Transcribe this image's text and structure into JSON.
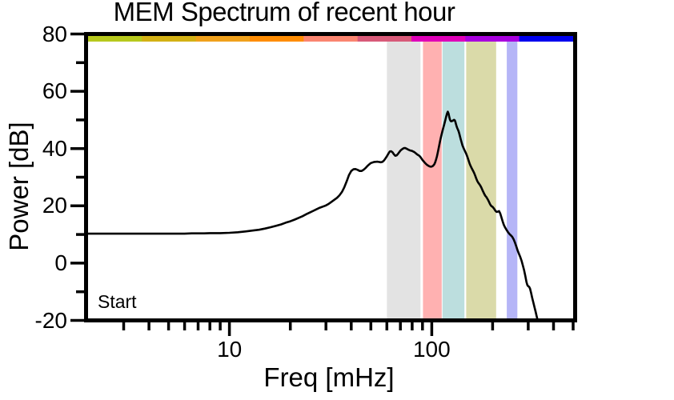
{
  "chart_data": {
    "type": "line",
    "title": "MEM Spectrum of recent hour",
    "annotation": {
      "text": "Start"
    },
    "grid": false,
    "legend": "none",
    "x_axis": {
      "label": "Freq [mHz]",
      "scale": "log",
      "min": 2,
      "max": 500,
      "major_ticks": [
        {
          "value": 10,
          "label": "10"
        },
        {
          "value": 100,
          "label": "100"
        }
      ],
      "minor_ticks": [
        3,
        4,
        5,
        6,
        7,
        8,
        9,
        20,
        30,
        40,
        50,
        60,
        70,
        80,
        90,
        200,
        300,
        400,
        500
      ]
    },
    "y_axis": {
      "label": "Power [dB]",
      "scale": "linear",
      "min": -20,
      "max": 80,
      "major_ticks": [
        {
          "value": 80,
          "label": "80"
        },
        {
          "value": 60,
          "label": "60"
        },
        {
          "value": 40,
          "label": "40"
        },
        {
          "value": 20,
          "label": "20"
        },
        {
          "value": 0,
          "label": "0"
        },
        {
          "value": -20,
          "label": "-20"
        }
      ],
      "minor_ticks": [
        70,
        50,
        30,
        10,
        -10
      ]
    },
    "top_colorbar": {
      "description": "nine equal log-width segments under top frame edge",
      "segments": [
        "#b7c91d",
        "#d3b115",
        "#f0a11c",
        "#ff8d04",
        "#fa8570",
        "#d85a79",
        "#df00b8",
        "#a800de",
        "#0000ee"
      ]
    },
    "shaded_bands": [
      {
        "name": "band-gray",
        "f_start": 60,
        "f_end": 88,
        "color": "#e3e3e3"
      },
      {
        "name": "band-pink",
        "f_start": 90.5,
        "f_end": 112,
        "color": "#ffb1b1"
      },
      {
        "name": "band-teal",
        "f_start": 113,
        "f_end": 145,
        "color": "#bcdede"
      },
      {
        "name": "band-khaki",
        "f_start": 148,
        "f_end": 208,
        "color": "#dadaa9"
      },
      {
        "name": "band-purple",
        "f_start": 235,
        "f_end": 265,
        "color": "#b5b5f7"
      }
    ],
    "series": [
      {
        "name": "mem-spectrum",
        "color": "#000000",
        "points": [
          [
            2,
            10
          ],
          [
            2.5,
            10
          ],
          [
            3,
            10
          ],
          [
            3.5,
            10
          ],
          [
            4,
            10
          ],
          [
            4.5,
            10
          ],
          [
            5,
            10
          ],
          [
            5.5,
            10
          ],
          [
            6,
            10
          ],
          [
            6.5,
            10.1
          ],
          [
            7,
            10.1
          ],
          [
            7.5,
            10.1
          ],
          [
            8,
            10.2
          ],
          [
            9,
            10.2
          ],
          [
            10,
            10.3
          ],
          [
            11,
            10.5
          ],
          [
            12,
            10.8
          ],
          [
            13,
            11.1
          ],
          [
            14,
            11.4
          ],
          [
            15,
            11.8
          ],
          [
            16,
            12.3
          ],
          [
            17,
            12.8
          ],
          [
            18,
            13.3
          ],
          [
            19,
            13.9
          ],
          [
            20,
            14.4
          ],
          [
            21,
            15
          ],
          [
            22,
            15.6
          ],
          [
            23,
            16.2
          ],
          [
            24,
            16.9
          ],
          [
            25,
            17.5
          ],
          [
            26,
            18.1
          ],
          [
            27,
            18.7
          ],
          [
            28,
            19.2
          ],
          [
            29,
            19.6
          ],
          [
            30,
            20
          ],
          [
            31,
            20.6
          ],
          [
            32,
            21.3
          ],
          [
            33,
            22
          ],
          [
            34,
            22.7
          ],
          [
            35,
            23.6
          ],
          [
            36,
            24.8
          ],
          [
            37,
            26.5
          ],
          [
            38,
            28.6
          ],
          [
            39,
            30.8
          ],
          [
            40,
            32.2
          ],
          [
            41,
            32.8
          ],
          [
            42,
            32.9
          ],
          [
            43,
            32.6
          ],
          [
            44,
            32.2
          ],
          [
            45,
            32.2
          ],
          [
            46,
            32.6
          ],
          [
            47,
            33.2
          ],
          [
            48,
            33.9
          ],
          [
            49,
            34.5
          ],
          [
            50,
            35
          ],
          [
            52,
            35.4
          ],
          [
            54,
            35.5
          ],
          [
            56,
            35.3
          ],
          [
            57,
            35.4
          ],
          [
            58,
            35.9
          ],
          [
            59,
            36.6
          ],
          [
            60,
            37.4
          ],
          [
            61,
            38.3
          ],
          [
            62,
            39.1
          ],
          [
            63,
            39.2
          ],
          [
            64,
            38.8
          ],
          [
            65,
            38.1
          ],
          [
            66,
            37.6
          ],
          [
            67,
            37.7
          ],
          [
            68,
            38.2
          ],
          [
            69,
            38.8
          ],
          [
            70,
            39.4
          ],
          [
            71,
            39.8
          ],
          [
            72,
            40.1
          ],
          [
            73,
            40.3
          ],
          [
            74,
            40.3
          ],
          [
            75,
            40.1
          ],
          [
            76,
            39.9
          ],
          [
            77,
            39.7
          ],
          [
            78,
            39.5
          ],
          [
            79,
            39.4
          ],
          [
            80,
            39.3
          ],
          [
            81,
            39.1
          ],
          [
            82,
            38.9
          ],
          [
            83,
            38.6
          ],
          [
            84,
            38.3
          ],
          [
            85,
            38
          ],
          [
            86,
            37.8
          ],
          [
            87,
            37.5
          ],
          [
            88,
            37.1
          ],
          [
            89,
            36.6
          ],
          [
            90,
            36.1
          ],
          [
            91,
            35.7
          ],
          [
            92,
            35.3
          ],
          [
            93,
            34.9
          ],
          [
            94,
            34.6
          ],
          [
            95,
            34.3
          ],
          [
            96,
            34.1
          ],
          [
            97,
            33.9
          ],
          [
            98,
            33.8
          ],
          [
            99,
            33.7
          ],
          [
            100,
            33.8
          ],
          [
            101,
            33.9
          ],
          [
            102,
            34.2
          ],
          [
            103,
            34.6
          ],
          [
            104,
            35.3
          ],
          [
            105,
            36.2
          ],
          [
            106,
            37.3
          ],
          [
            107,
            38.6
          ],
          [
            108,
            40
          ],
          [
            109,
            41.4
          ],
          [
            110,
            42.8
          ],
          [
            111,
            44.1
          ],
          [
            112,
            45.3
          ],
          [
            113,
            46.4
          ],
          [
            114,
            47.4
          ],
          [
            115,
            48.4
          ],
          [
            116,
            49.4
          ],
          [
            117,
            50.5
          ],
          [
            118,
            51.6
          ],
          [
            119,
            52.6
          ],
          [
            120,
            53.2
          ],
          [
            121,
            52.6
          ],
          [
            122,
            51.4
          ],
          [
            123,
            50.4
          ],
          [
            124,
            49.9
          ],
          [
            125,
            49.8
          ],
          [
            126,
            49.9
          ],
          [
            127,
            50
          ],
          [
            128,
            50.2
          ],
          [
            129,
            50.3
          ],
          [
            130,
            50.1
          ],
          [
            131,
            49.5
          ],
          [
            132,
            48.6
          ],
          [
            133,
            47.8
          ],
          [
            134,
            47.2
          ],
          [
            135,
            46.7
          ],
          [
            136,
            46.1
          ],
          [
            137,
            45.3
          ],
          [
            138,
            44.4
          ],
          [
            139,
            43.5
          ],
          [
            140,
            42.7
          ],
          [
            142,
            41.2
          ],
          [
            144,
            40.1
          ],
          [
            146,
            39.2
          ],
          [
            148,
            38.3
          ],
          [
            150,
            37.2
          ],
          [
            152,
            36
          ],
          [
            154,
            34.8
          ],
          [
            156,
            33.8
          ],
          [
            158,
            33
          ],
          [
            160,
            32.3
          ],
          [
            162,
            31.5
          ],
          [
            164,
            30.5
          ],
          [
            166,
            29.5
          ],
          [
            168,
            28.6
          ],
          [
            170,
            28
          ],
          [
            172,
            27.5
          ],
          [
            174,
            27
          ],
          [
            176,
            26.3
          ],
          [
            178,
            25.5
          ],
          [
            180,
            24.7
          ],
          [
            182,
            24
          ],
          [
            184,
            23.4
          ],
          [
            186,
            23
          ],
          [
            188,
            22.5
          ],
          [
            190,
            21.9
          ],
          [
            192,
            21.2
          ],
          [
            194,
            20.5
          ],
          [
            196,
            20
          ],
          [
            198,
            19.7
          ],
          [
            200,
            19.5
          ],
          [
            203,
            18.9
          ],
          [
            206,
            18.2
          ],
          [
            209,
            17.7
          ],
          [
            212,
            17.8
          ],
          [
            215,
            18
          ],
          [
            218,
            17.2
          ],
          [
            221,
            15.8
          ],
          [
            224,
            14.4
          ],
          [
            227,
            13.2
          ],
          [
            230,
            12.3
          ],
          [
            234,
            11.4
          ],
          [
            238,
            10.6
          ],
          [
            242,
            9.9
          ],
          [
            246,
            9.4
          ],
          [
            250,
            8.9
          ],
          [
            254,
            8
          ],
          [
            258,
            6.8
          ],
          [
            262,
            5.4
          ],
          [
            266,
            4
          ],
          [
            270,
            2.8
          ],
          [
            274,
            1.7
          ],
          [
            278,
            0.4
          ],
          [
            282,
            -1.2
          ],
          [
            286,
            -2.9
          ],
          [
            290,
            -4.9
          ],
          [
            294,
            -7.1
          ],
          [
            297,
            -8.2
          ],
          [
            300,
            -8.6
          ],
          [
            303,
            -8.8
          ],
          [
            306,
            -9.4
          ],
          [
            310,
            -11
          ],
          [
            314,
            -12.8
          ],
          [
            318,
            -14.4
          ],
          [
            322,
            -16
          ],
          [
            326,
            -17.6
          ],
          [
            330,
            -19.2
          ],
          [
            332,
            -20
          ]
        ]
      }
    ],
    "colors": {
      "curve": "#000000",
      "frame": "#000000",
      "background": "#ffffff"
    }
  }
}
